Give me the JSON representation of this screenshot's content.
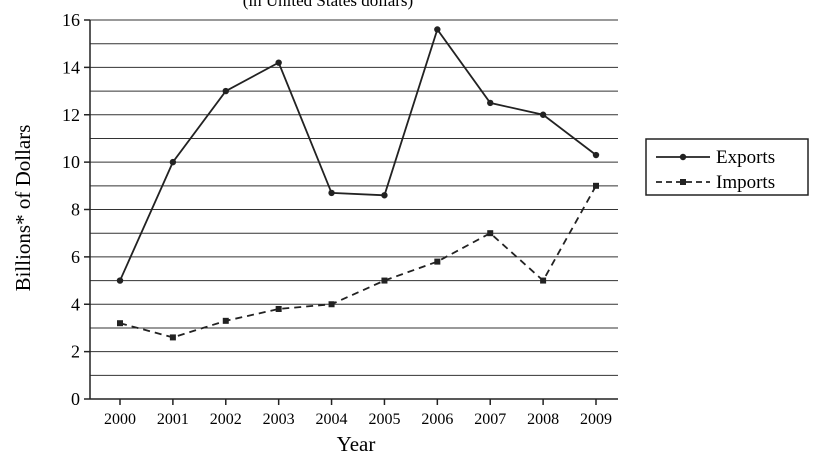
{
  "chart_data": {
    "type": "line",
    "title": "(in United States dollars)",
    "xlabel": "Year",
    "ylabel": "Billions* of Dollars",
    "categories": [
      "2000",
      "2001",
      "2002",
      "2003",
      "2004",
      "2005",
      "2006",
      "2007",
      "2008",
      "2009"
    ],
    "ylim": [
      0,
      16
    ],
    "y_ticks": [
      "0",
      "2",
      "4",
      "6",
      "8",
      "10",
      "12",
      "14",
      "16"
    ],
    "grid": true,
    "legend_position": "right",
    "series": [
      {
        "name": "Exports",
        "style": "solid",
        "marker": "circle",
        "color": "#222222",
        "values": [
          5.0,
          10.0,
          13.0,
          14.2,
          8.7,
          8.6,
          15.6,
          12.5,
          12.0,
          10.3
        ]
      },
      {
        "name": "Imports",
        "style": "dashed",
        "marker": "square",
        "color": "#222222",
        "values": [
          3.2,
          2.6,
          3.3,
          3.8,
          4.0,
          5.0,
          5.8,
          7.0,
          5.0,
          9.0
        ]
      }
    ]
  }
}
